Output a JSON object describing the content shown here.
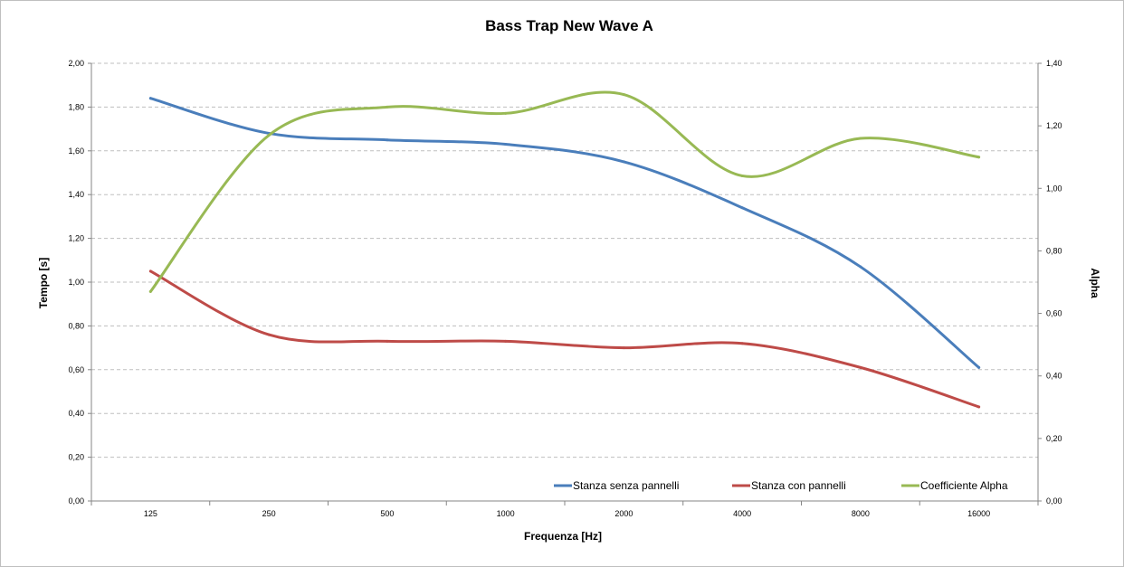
{
  "chart_data": {
    "type": "line",
    "title": "Bass Trap New Wave A",
    "xlabel": "Frequenza [Hz]",
    "ylabel": "Tempo [s]",
    "y2label": "Alpha",
    "categories": [
      "125",
      "250",
      "500",
      "1000",
      "2000",
      "4000",
      "8000",
      "16000"
    ],
    "ylim": [
      0,
      2
    ],
    "y2lim": [
      0,
      1.4
    ],
    "yticks": [
      "0,00",
      "0,20",
      "0,40",
      "0,60",
      "0,80",
      "1,00",
      "1,20",
      "1,40",
      "1,60",
      "1,80",
      "2,00"
    ],
    "y2ticks": [
      "0,00",
      "0,20",
      "0,40",
      "0,60",
      "0,80",
      "1,00",
      "1,20",
      "1,40"
    ],
    "grid": true,
    "legend_position": "bottom-right",
    "series": [
      {
        "name": "Stanza senza pannelli",
        "axis": "left",
        "color": "#4a7ebb",
        "values": [
          1.84,
          1.68,
          1.65,
          1.63,
          1.55,
          1.34,
          1.07,
          0.61
        ]
      },
      {
        "name": "Stanza con pannelli",
        "axis": "left",
        "color": "#be4b48",
        "values": [
          1.05,
          0.76,
          0.73,
          0.73,
          0.7,
          0.72,
          0.61,
          0.43
        ]
      },
      {
        "name": "Coefficiente Alpha",
        "axis": "right",
        "color": "#98b954",
        "values": [
          0.67,
          1.17,
          1.26,
          1.24,
          1.3,
          1.04,
          1.16,
          1.1
        ]
      }
    ]
  }
}
